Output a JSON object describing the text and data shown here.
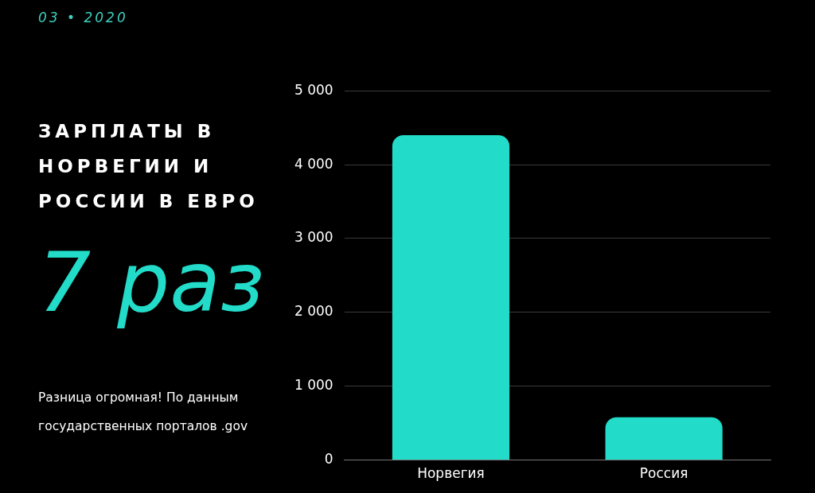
{
  "chart_data": {
    "type": "bar",
    "title": "ЗАРПЛАТЫ В НОРВЕГИИ И РОССИИ В ЕВРО",
    "subtitle": "03 • 2020",
    "annotations": [
      "7 раз",
      "Разница огромная! По данным государственных порталов .gov"
    ],
    "categories": [
      "Норвегия",
      "Россия"
    ],
    "values": [
      4400,
      580
    ],
    "color": "#22dbc8",
    "ylim": [
      0,
      5000
    ],
    "yticks": [
      {
        "value": 0,
        "label": "0"
      },
      {
        "value": 1000,
        "label": "1 000"
      },
      {
        "value": 2000,
        "label": "2 000"
      },
      {
        "value": 3000,
        "label": "3 000"
      },
      {
        "value": 4000,
        "label": "4 000"
      },
      {
        "value": 5000,
        "label": "5 000"
      }
    ],
    "grid": "y"
  }
}
